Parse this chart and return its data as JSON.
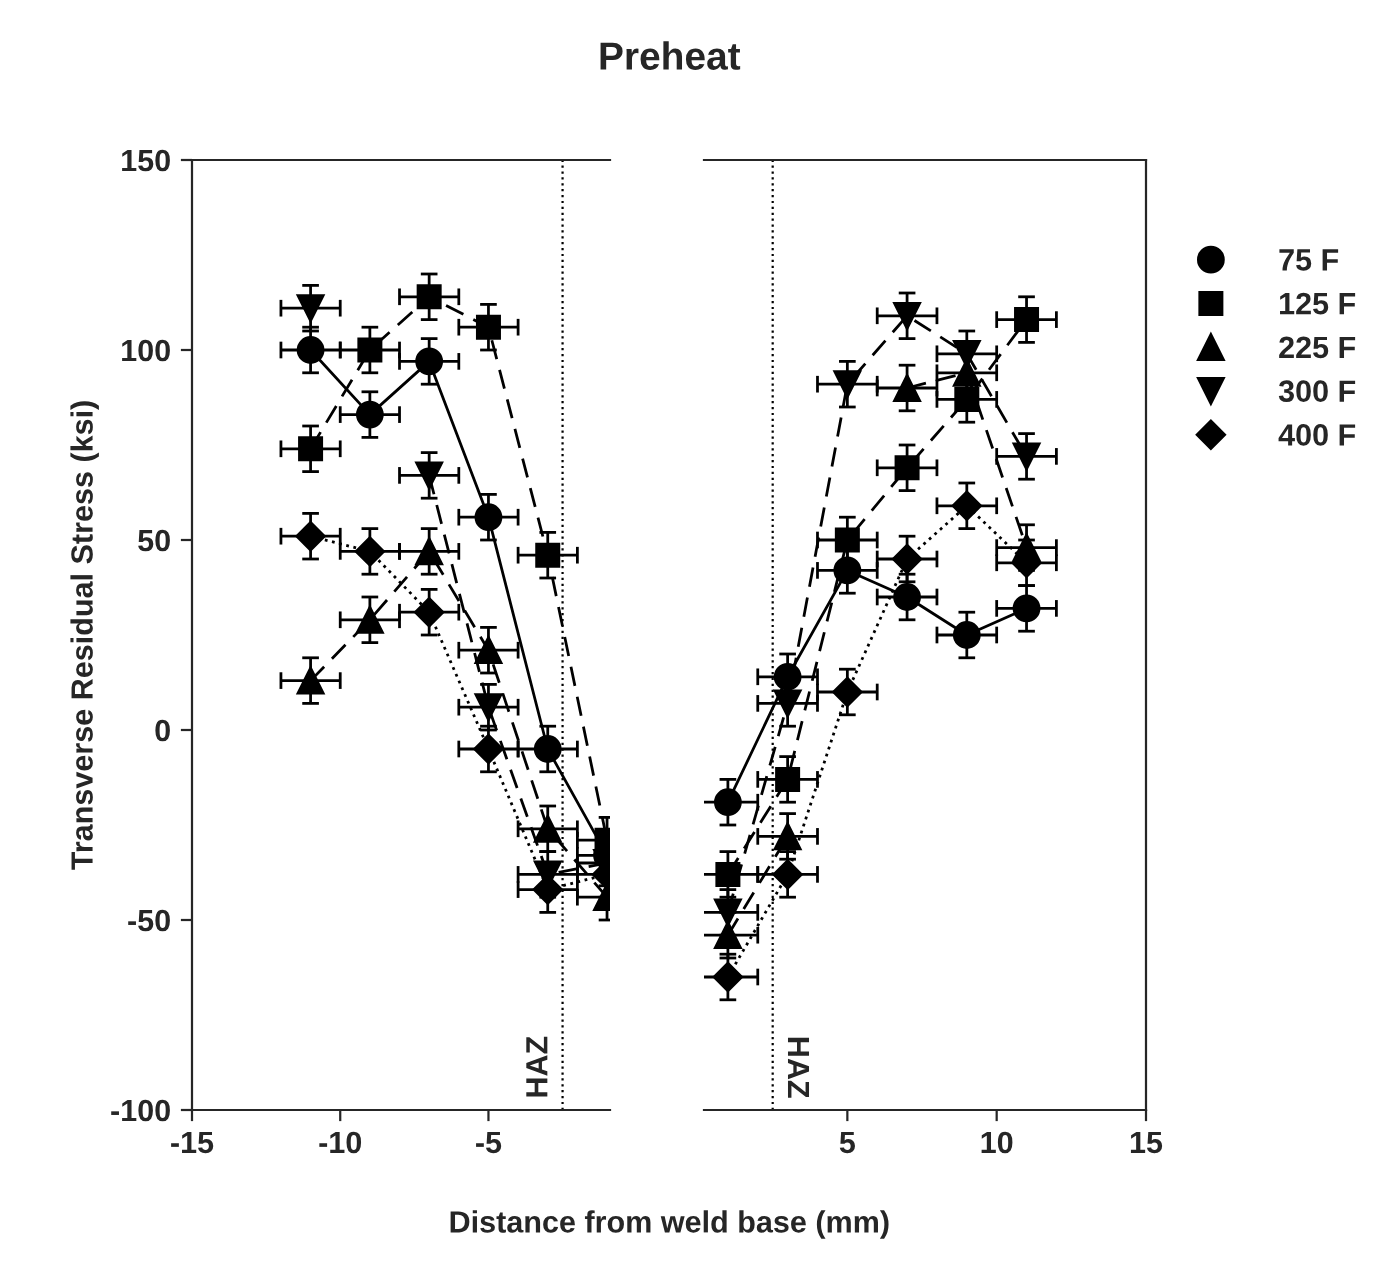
{
  "chart_data": [
    {
      "type": "line",
      "title": "Preheat",
      "xlabel": "Distance from weld base (mm)",
      "ylabel": "Transverse Residual Stress (ksi)",
      "x": [
        -11,
        -9,
        -7,
        -5,
        -3,
        -1
      ],
      "xlim": [
        -15,
        -0.9
      ],
      "xticks": [
        -15,
        -10,
        -5
      ],
      "ylim": [
        -100,
        150
      ],
      "yticks": [
        -100,
        -50,
        0,
        50,
        100,
        150
      ],
      "grid": false,
      "legend": false,
      "ref_lines": [
        {
          "axis": "x",
          "value": -2.5,
          "label": "HAZ",
          "line_style": "dotted",
          "color": "#000000"
        }
      ],
      "series": [
        {
          "color": "#000000",
          "marker": "circle",
          "line_style": "solid",
          "values": [
            100,
            83,
            97,
            56,
            -5,
            -33
          ],
          "errors": [
            6,
            6,
            6,
            6,
            6,
            6
          ],
          "xerrors": [
            1,
            1,
            1,
            1,
            1,
            1
          ]
        },
        {
          "color": "#000000",
          "marker": "square",
          "line_style": "dashed",
          "values": [
            74,
            100,
            114,
            106,
            46,
            -29
          ],
          "errors": [
            6,
            6,
            6,
            6,
            6,
            6
          ],
          "xerrors": [
            1,
            1,
            1,
            1,
            1,
            1
          ]
        },
        {
          "color": "#000000",
          "marker": "triangle",
          "line_style": "dashed",
          "values": [
            13,
            29,
            47,
            21,
            -26,
            -44
          ],
          "errors": [
            6,
            6,
            6,
            6,
            6,
            6
          ],
          "xerrors": [
            1,
            1,
            1,
            1,
            1,
            1
          ]
        },
        {
          "color": "#000000",
          "marker": "triangle_down",
          "line_style": "dashed",
          "values": [
            111,
            null,
            67,
            6,
            -38,
            -35
          ],
          "errors": [
            6,
            null,
            6,
            6,
            6,
            6
          ],
          "xerrors": [
            1,
            null,
            1,
            1,
            1,
            1
          ]
        },
        {
          "color": "#000000",
          "marker": "diamond",
          "line_style": "dotted",
          "values": [
            51,
            47,
            31,
            -5,
            -42,
            -38
          ],
          "errors": [
            6,
            6,
            6,
            6,
            6,
            6
          ],
          "xerrors": [
            1,
            1,
            1,
            1,
            1,
            1
          ]
        }
      ]
    },
    {
      "type": "line",
      "x": [
        1,
        3,
        5,
        7,
        9,
        11
      ],
      "xlim": [
        0.2,
        15
      ],
      "xticks": [
        5,
        10,
        15
      ],
      "ylim": [
        -100,
        150
      ],
      "tick_labels": "x",
      "grid": false,
      "legend": "right",
      "ref_lines": [
        {
          "axis": "x",
          "value": 2.5,
          "label": "HAZ",
          "line_style": "dotted",
          "color": "#000000"
        }
      ],
      "series": [
        {
          "name": "75 F",
          "color": "#000000",
          "marker": "circle",
          "line_style": "solid",
          "values": [
            -19,
            14,
            42,
            35,
            25,
            32
          ],
          "errors": [
            6,
            6,
            6,
            6,
            6,
            6
          ],
          "xerrors": [
            1,
            1,
            1,
            1,
            1,
            1
          ]
        },
        {
          "name": "125 F",
          "color": "#000000",
          "marker": "square",
          "line_style": "dashed",
          "values": [
            -38,
            -13,
            50,
            69,
            87,
            108
          ],
          "errors": [
            6,
            6,
            6,
            6,
            6,
            6
          ],
          "xerrors": [
            1,
            1,
            1,
            1,
            1,
            1
          ]
        },
        {
          "name": "225 F",
          "color": "#000000",
          "marker": "triangle",
          "line_style": "dashed",
          "values": [
            -54,
            -28,
            null,
            90,
            94,
            48
          ],
          "errors": [
            6,
            6,
            null,
            6,
            6,
            6
          ],
          "xerrors": [
            1,
            1,
            null,
            1,
            1,
            1
          ]
        },
        {
          "name": "300 F",
          "color": "#000000",
          "marker": "triangle_down",
          "line_style": "dashed",
          "values": [
            -48,
            7,
            91,
            109,
            99,
            72
          ],
          "errors": [
            6,
            6,
            6,
            6,
            6,
            6
          ],
          "xerrors": [
            1,
            1,
            1,
            1,
            1,
            1
          ]
        },
        {
          "name": "400 F",
          "color": "#000000",
          "marker": "diamond",
          "line_style": "dotted",
          "values": [
            -65,
            -38,
            10,
            45,
            59,
            44
          ],
          "errors": [
            6,
            6,
            6,
            6,
            6,
            6
          ],
          "xerrors": [
            1,
            1,
            1,
            1,
            1,
            1
          ]
        }
      ]
    }
  ]
}
